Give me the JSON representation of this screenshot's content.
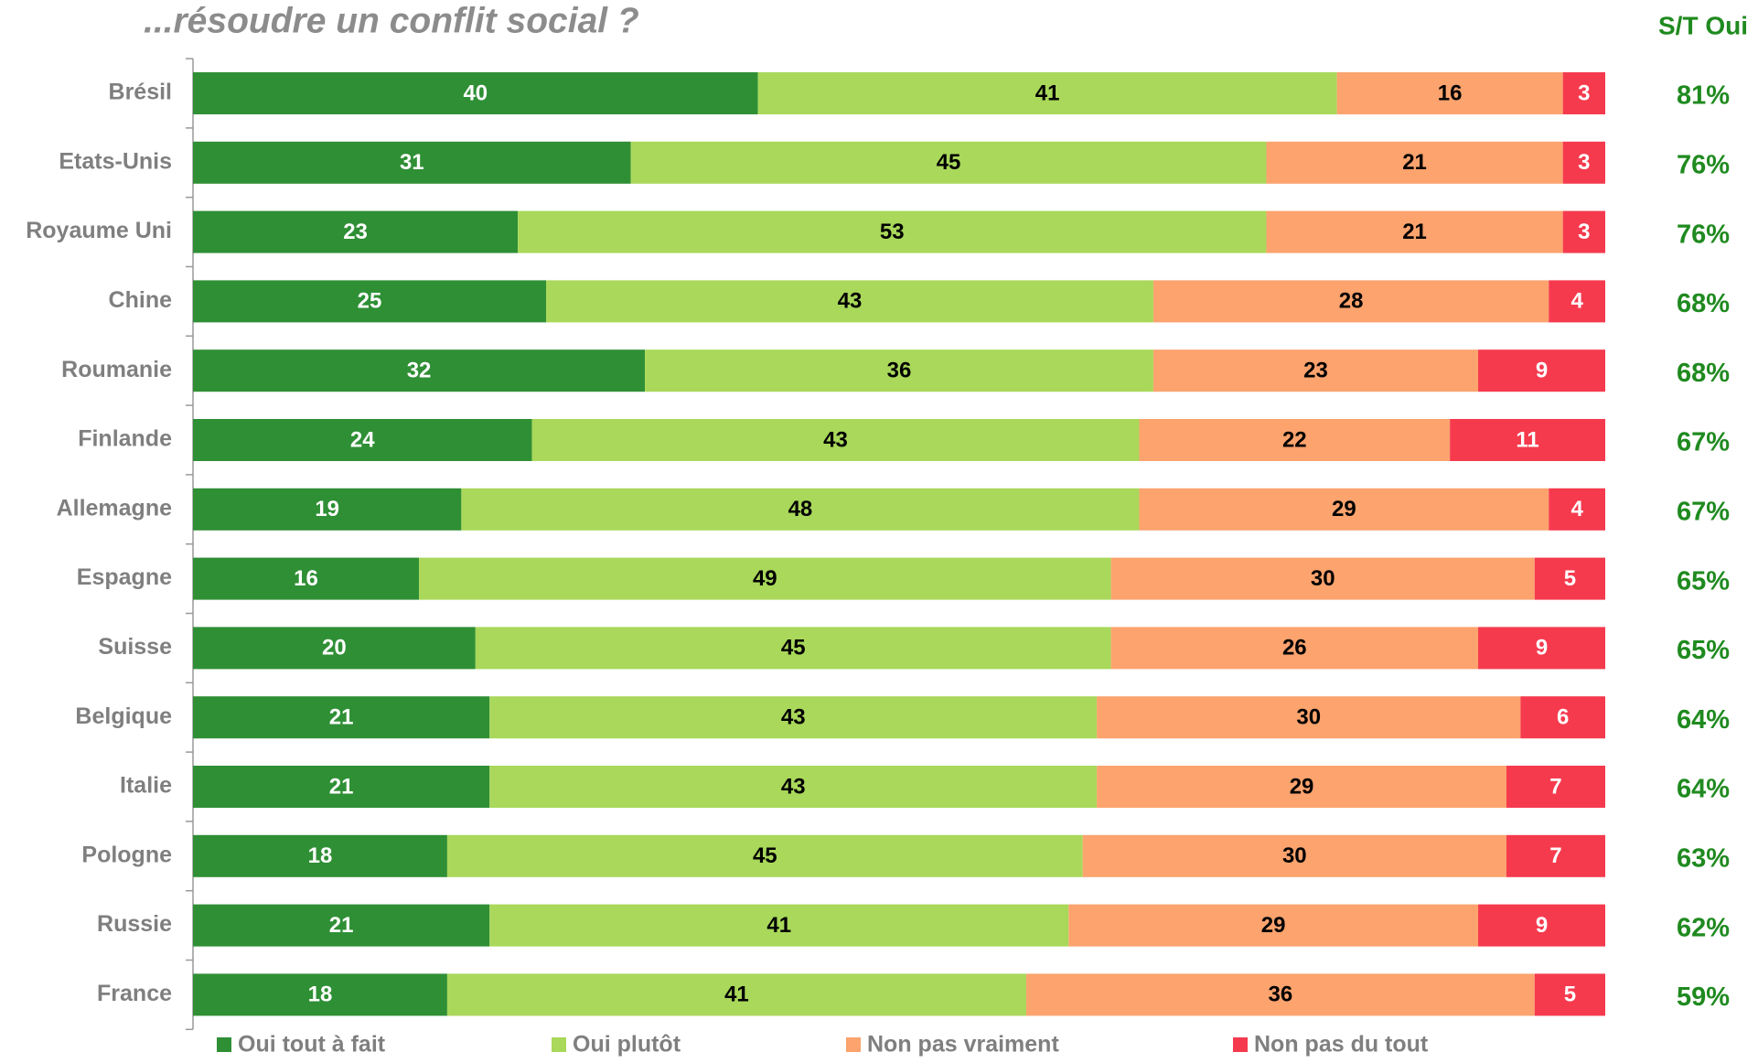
{
  "chart_data": {
    "type": "stacked-bar-horizontal",
    "title": "...résoudre un conflit social ?",
    "categories": [
      "Brésil",
      "Etats-Unis",
      "Royaume Uni",
      "Chine",
      "Roumanie",
      "Finlande",
      "Allemagne",
      "Espagne",
      "Suisse",
      "Belgique",
      "Italie",
      "Pologne",
      "Russie",
      "France"
    ],
    "xlim": [
      0,
      100
    ],
    "series": [
      {
        "name": "Oui tout à fait",
        "color": "#2f8f35",
        "values": [
          40,
          31,
          23,
          25,
          32,
          24,
          19,
          16,
          20,
          21,
          21,
          18,
          21,
          18
        ]
      },
      {
        "name": "Oui plutôt",
        "color": "#a9d85a",
        "values": [
          41,
          45,
          53,
          43,
          36,
          43,
          48,
          49,
          45,
          43,
          43,
          45,
          41,
          41
        ]
      },
      {
        "name": "Non pas vraiment",
        "color": "#fca36e",
        "values": [
          16,
          21,
          21,
          28,
          23,
          22,
          29,
          30,
          26,
          30,
          29,
          30,
          29,
          36
        ]
      },
      {
        "name": "Non pas du tout",
        "color": "#f53a4e",
        "values": [
          3,
          3,
          3,
          4,
          9,
          11,
          4,
          5,
          9,
          6,
          7,
          7,
          9,
          5
        ]
      }
    ],
    "subtotal": {
      "name": "S/T Oui",
      "color": "#1f8a1f",
      "values": [
        81,
        76,
        76,
        68,
        68,
        67,
        67,
        65,
        65,
        64,
        64,
        63,
        62,
        59
      ],
      "value_labels": [
        "81%",
        "76%",
        "76%",
        "68%",
        "68%",
        "67%",
        "67%",
        "65%",
        "65%",
        "64%",
        "64%",
        "63%",
        "62%",
        "59%"
      ]
    }
  }
}
